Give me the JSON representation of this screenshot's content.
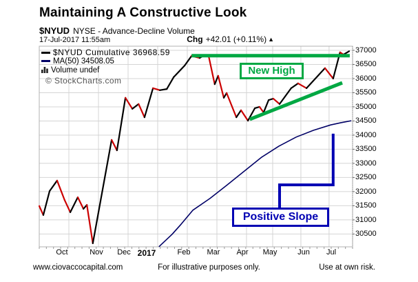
{
  "header": {
    "title": "Maintaining A Constructive Look",
    "symbol": "$NYUD",
    "exchange_label": "NYSE - Advance-Decline Volume",
    "timestamp": "17-Jul-2017 11:55am",
    "change": {
      "label": "Chg",
      "value": "+42.01 (+0.11%)",
      "arrow": "▲"
    }
  },
  "legend": {
    "items": [
      {
        "label": "$NYUD Cumulative",
        "value": "36968.59",
        "color": "#000000"
      },
      {
        "label": "MA(50)",
        "value": "34508.05",
        "color": "#000066"
      },
      {
        "label": "Volume",
        "value": "undef",
        "color": "#333333"
      }
    ],
    "watermark": "© StockCharts.com"
  },
  "annotations_text": {
    "new_high": "New High",
    "positive_slope": "Positive Slope"
  },
  "footer": {
    "source": "www.ciovaccocapital.com",
    "disclaimer": "For illustrative purposes only.",
    "risk": "Use at own risk."
  },
  "colors": {
    "green": "#00a843",
    "navy": "#0000b3",
    "ma": "#000066",
    "up": "#000000",
    "down": "#cc0000",
    "grid": "#d4d4d4",
    "border": "#b0b0b0",
    "tick": "#888888"
  },
  "chart_data": {
    "type": "line",
    "title": "$NYUD Cumulative Advance-Decline Volume, Sep 2016 - Jul 2017, with MA(50)",
    "legend_position": "top-left inside plot",
    "grid": true,
    "y_axis": {
      "side": "right",
      "min": 30046,
      "max": 37146,
      "tick_values": [
        37000,
        36500,
        36000,
        35500,
        35000,
        34500,
        34000,
        33500,
        33000,
        32500,
        32000,
        31500,
        31000,
        30500
      ]
    },
    "x_axis": {
      "ticks": [
        {
          "label": "Oct",
          "t": 0.0725
        },
        {
          "label": "Nov",
          "t": 0.1824
        },
        {
          "label": "Dec",
          "t": 0.2703
        },
        {
          "label": "2017",
          "t": 0.3429,
          "bold": true
        },
        {
          "label": "Feb",
          "t": 0.4615
        },
        {
          "label": "Mar",
          "t": 0.556
        },
        {
          "label": "Apr",
          "t": 0.6484
        },
        {
          "label": "May",
          "t": 0.7363
        },
        {
          "label": "Jun",
          "t": 0.844
        },
        {
          "label": "Jul",
          "t": 0.9319
        }
      ],
      "gridlines_t": [
        0.0945,
        0.189,
        0.2835,
        0.378,
        0.4725,
        0.567,
        0.6615,
        0.745,
        0.835,
        0.925
      ],
      "minor_tick_count": 44
    },
    "series": [
      {
        "name": "$NYUD Cumulative",
        "last_value": 36968.59,
        "render": "two_color",
        "up_color": "#000000",
        "down_color": "#cc0000",
        "width": 2.2,
        "points": [
          [
            0.0,
            31490
          ],
          [
            0.013,
            31170
          ],
          [
            0.033,
            32020
          ],
          [
            0.057,
            32390
          ],
          [
            0.081,
            31700
          ],
          [
            0.099,
            31270
          ],
          [
            0.123,
            31800
          ],
          [
            0.141,
            31390
          ],
          [
            0.152,
            31530
          ],
          [
            0.171,
            30170
          ],
          [
            0.231,
            33830
          ],
          [
            0.248,
            33460
          ],
          [
            0.275,
            35320
          ],
          [
            0.297,
            34930
          ],
          [
            0.317,
            35100
          ],
          [
            0.336,
            34630
          ],
          [
            0.363,
            35660
          ],
          [
            0.385,
            35590
          ],
          [
            0.407,
            35630
          ],
          [
            0.429,
            36050
          ],
          [
            0.464,
            36460
          ],
          [
            0.486,
            36800
          ],
          [
            0.512,
            36730
          ],
          [
            0.527,
            36830
          ],
          [
            0.541,
            36780
          ],
          [
            0.56,
            35800
          ],
          [
            0.571,
            36100
          ],
          [
            0.589,
            35320
          ],
          [
            0.598,
            35490
          ],
          [
            0.629,
            34630
          ],
          [
            0.644,
            34880
          ],
          [
            0.666,
            34510
          ],
          [
            0.688,
            34950
          ],
          [
            0.703,
            35000
          ],
          [
            0.716,
            34800
          ],
          [
            0.732,
            35240
          ],
          [
            0.747,
            35290
          ],
          [
            0.767,
            35100
          ],
          [
            0.804,
            35660
          ],
          [
            0.826,
            35830
          ],
          [
            0.853,
            35660
          ],
          [
            0.912,
            36370
          ],
          [
            0.938,
            36000
          ],
          [
            0.96,
            36930
          ],
          [
            0.971,
            36850
          ],
          [
            0.989,
            36968.59
          ]
        ]
      },
      {
        "name": "MA(50)",
        "last_value": 34508.05,
        "render": "single",
        "color": "#000066",
        "width": 1.6,
        "points": [
          [
            0.382,
            30050
          ],
          [
            0.424,
            30490
          ],
          [
            0.453,
            30850
          ],
          [
            0.49,
            31340
          ],
          [
            0.545,
            31760
          ],
          [
            0.6,
            32240
          ],
          [
            0.655,
            32730
          ],
          [
            0.71,
            33220
          ],
          [
            0.765,
            33610
          ],
          [
            0.82,
            33930
          ],
          [
            0.875,
            34170
          ],
          [
            0.93,
            34360
          ],
          [
            0.963,
            34440
          ],
          [
            0.996,
            34508.05
          ]
        ]
      }
    ],
    "annotations": [
      {
        "id": "resistance-line",
        "type": "hline",
        "v": 36810,
        "t1": 0.486,
        "t2": 0.991,
        "color": "green",
        "width": 5
      },
      {
        "id": "support-trendline",
        "type": "segment",
        "p1": [
          0.672,
          34560
        ],
        "p2": [
          0.967,
          35850
        ],
        "color": "green",
        "width": 5
      },
      {
        "id": "ma-callout-connector",
        "type": "polyline",
        "points": [
          [
            0.767,
            31410
          ],
          [
            0.767,
            32240
          ],
          [
            0.938,
            32240
          ],
          [
            0.938,
            34050
          ]
        ],
        "color": "navy",
        "width": 4
      }
    ]
  }
}
